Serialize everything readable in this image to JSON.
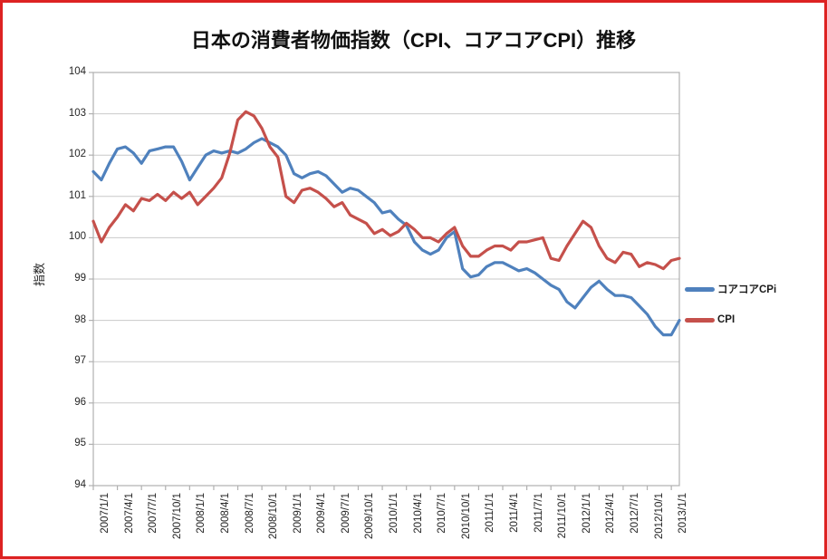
{
  "frame": {
    "border_color": "#dd2222"
  },
  "chart_data": {
    "type": "line",
    "title": "日本の消費者物価指数（CPI、コアコアCPI）推移",
    "xlabel": "",
    "ylabel": "指数",
    "ylim": [
      94,
      104
    ],
    "ytick_step": 1,
    "grid": true,
    "legend_position": "right",
    "y_tick_labels": [
      "104",
      "103",
      "102",
      "101",
      "100",
      "99",
      "98",
      "97",
      "96",
      "95",
      "94"
    ],
    "x_tick_labels": [
      "2007/1/1",
      "2007/4/1",
      "2007/7/1",
      "2007/10/1",
      "2008/1/1",
      "2008/4/1",
      "2008/7/1",
      "2008/10/1",
      "2009/1/1",
      "2009/4/1",
      "2009/7/1",
      "2009/10/1",
      "2010/1/1",
      "2010/4/1",
      "2010/7/1",
      "2010/10/1",
      "2011/1/1",
      "2011/4/1",
      "2011/7/1",
      "2011/10/1",
      "2012/1/1",
      "2012/4/1",
      "2012/7/1",
      "2012/10/1",
      "2013/1/1"
    ],
    "x": [
      "2007/1",
      "2007/2",
      "2007/3",
      "2007/4",
      "2007/5",
      "2007/6",
      "2007/7",
      "2007/8",
      "2007/9",
      "2007/10",
      "2007/11",
      "2007/12",
      "2008/1",
      "2008/2",
      "2008/3",
      "2008/4",
      "2008/5",
      "2008/6",
      "2008/7",
      "2008/8",
      "2008/9",
      "2008/10",
      "2008/11",
      "2008/12",
      "2009/1",
      "2009/2",
      "2009/3",
      "2009/4",
      "2009/5",
      "2009/6",
      "2009/7",
      "2009/8",
      "2009/9",
      "2009/10",
      "2009/11",
      "2009/12",
      "2010/1",
      "2010/2",
      "2010/3",
      "2010/4",
      "2010/5",
      "2010/6",
      "2010/7",
      "2010/8",
      "2010/9",
      "2010/10",
      "2010/11",
      "2010/12",
      "2011/1",
      "2011/2",
      "2011/3",
      "2011/4",
      "2011/5",
      "2011/6",
      "2011/7",
      "2011/8",
      "2011/9",
      "2011/10",
      "2011/11",
      "2011/12",
      "2012/1",
      "2012/2",
      "2012/3",
      "2012/4",
      "2012/5",
      "2012/6",
      "2012/7",
      "2012/8",
      "2012/9",
      "2012/10",
      "2012/11",
      "2012/12",
      "2013/1",
      "2013/2"
    ],
    "series": [
      {
        "name": "コアコアCPi",
        "color": "#4f81bd",
        "values": [
          101.6,
          101.4,
          101.8,
          102.15,
          102.2,
          102.05,
          101.8,
          102.1,
          102.15,
          102.2,
          102.2,
          101.85,
          101.4,
          101.7,
          102.0,
          102.1,
          102.05,
          102.1,
          102.05,
          102.15,
          102.3,
          102.4,
          102.3,
          102.2,
          102.0,
          101.55,
          101.45,
          101.55,
          101.6,
          101.5,
          101.3,
          101.1,
          101.2,
          101.15,
          101.0,
          100.85,
          100.6,
          100.65,
          100.45,
          100.3,
          99.9,
          99.7,
          99.6,
          99.7,
          100.0,
          100.15,
          99.25,
          99.05,
          99.1,
          99.3,
          99.4,
          99.4,
          99.3,
          99.2,
          99.25,
          99.15,
          99.0,
          98.85,
          98.75,
          98.45,
          98.3,
          98.55,
          98.8,
          98.95,
          98.75,
          98.6,
          98.6,
          98.55,
          98.35,
          98.15,
          97.85,
          97.65,
          97.65,
          98.0
        ]
      },
      {
        "name": "CPI",
        "color": "#c5504b",
        "values": [
          100.4,
          99.9,
          100.25,
          100.5,
          100.8,
          100.65,
          100.95,
          100.9,
          101.05,
          100.9,
          101.1,
          100.95,
          101.1,
          100.8,
          101.0,
          101.2,
          101.45,
          102.05,
          102.85,
          103.05,
          102.95,
          102.65,
          102.2,
          101.95,
          101.0,
          100.85,
          101.15,
          101.2,
          101.1,
          100.95,
          100.75,
          100.85,
          100.55,
          100.45,
          100.35,
          100.1,
          100.2,
          100.05,
          100.15,
          100.35,
          100.2,
          100.0,
          100.0,
          99.9,
          100.1,
          100.25,
          99.8,
          99.55,
          99.55,
          99.7,
          99.8,
          99.8,
          99.7,
          99.9,
          99.9,
          99.95,
          100.0,
          99.5,
          99.45,
          99.8,
          100.1,
          100.4,
          100.25,
          99.8,
          99.5,
          99.4,
          99.65,
          99.6,
          99.3,
          99.4,
          99.35,
          99.25,
          99.45,
          99.5
        ]
      }
    ],
    "axis_color": "#b0b0b0",
    "gridline_color": "#c9c9c9"
  }
}
